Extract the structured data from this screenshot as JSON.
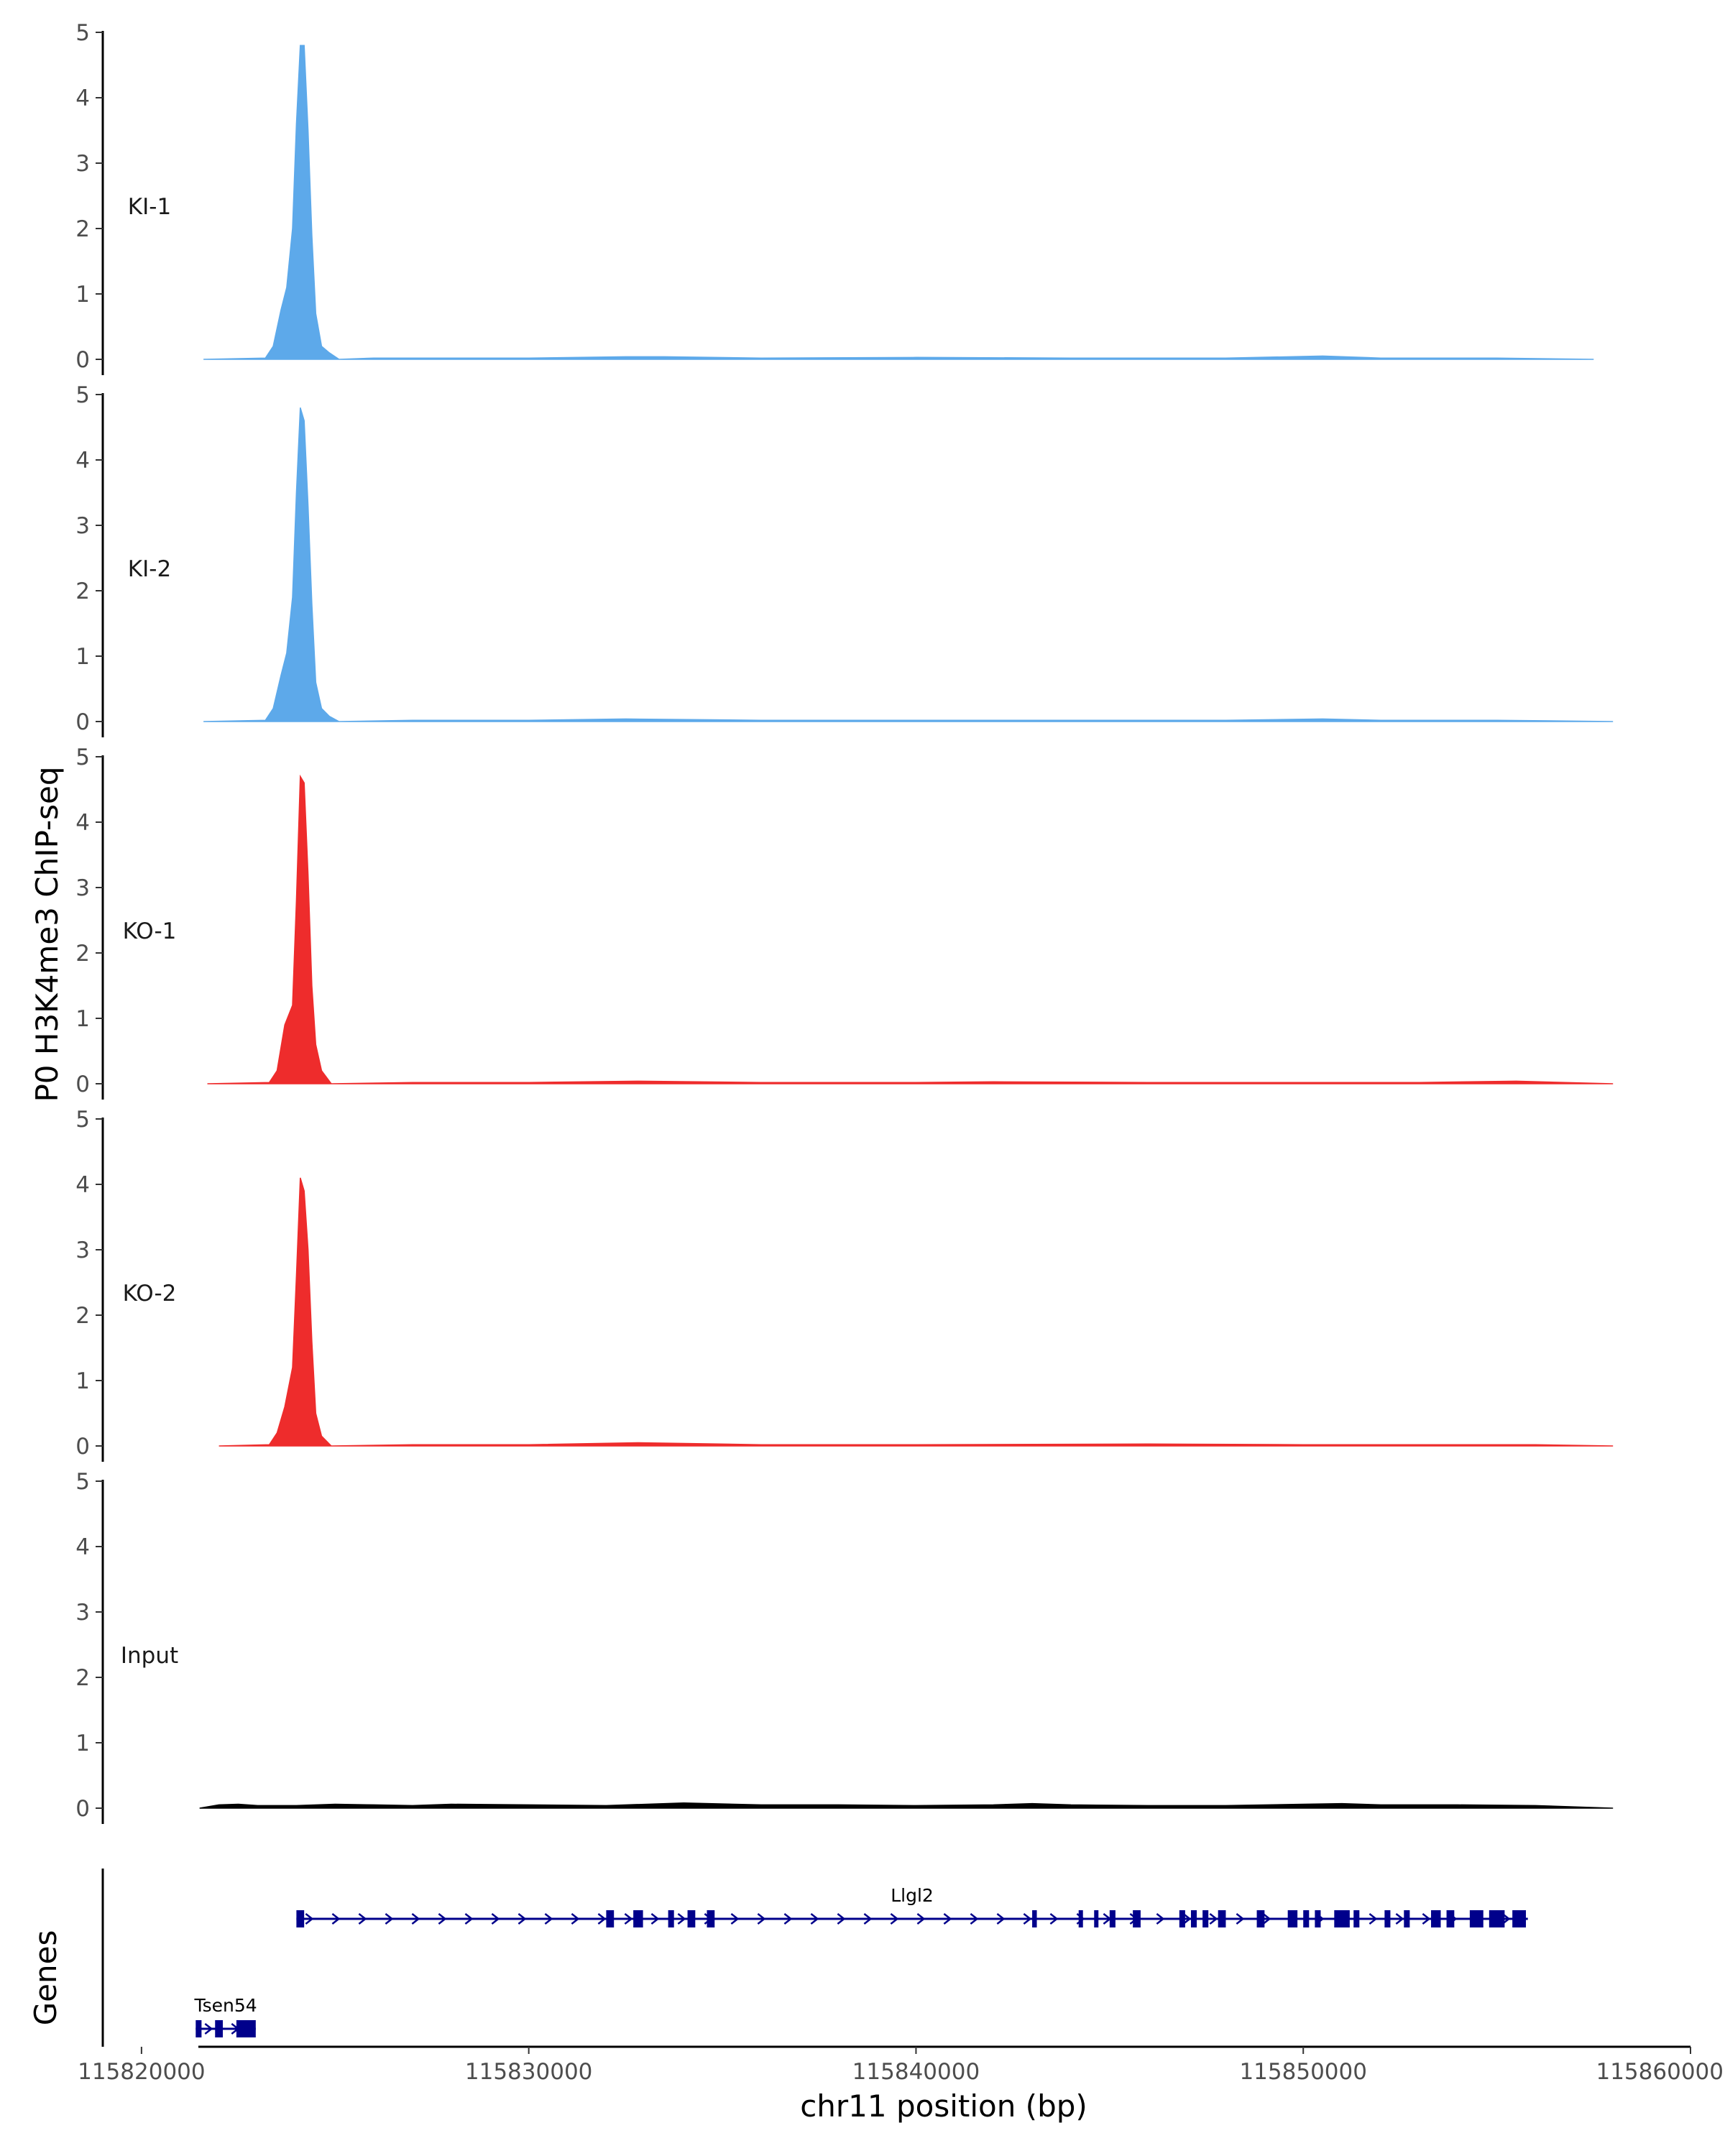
{
  "chart_data": {
    "type": "area",
    "ylabel": "P0 H3K4me3 ChIP-seq",
    "xlabel": "chr11 position (bp)",
    "xlim": [
      115819000,
      115860000
    ],
    "x_ticks": [
      115820000,
      115830000,
      115840000,
      115850000,
      115860000
    ],
    "x_tick_labels": [
      "115820000",
      "115830000",
      "115840000",
      "115850000",
      "115860000"
    ],
    "ylim": [
      0,
      5
    ],
    "y_ticks": [
      0,
      1,
      2,
      3,
      4,
      5
    ],
    "grid": false,
    "tracks": [
      {
        "name": "KI-1",
        "color": "#5DA9EA",
        "x": [
          115821600,
          115823200,
          115823400,
          115823600,
          115823750,
          115823900,
          115824000,
          115824100,
          115824200,
          115824300,
          115824400,
          115824500,
          115824650,
          115824850,
          115825100,
          115826000,
          115828000,
          115830000,
          115832500,
          115833500,
          115836000,
          115840000,
          115844000,
          115848000,
          115850500,
          115852000,
          115855000,
          115857500
        ],
        "values": [
          0.0,
          0.02,
          0.2,
          0.75,
          1.1,
          2.0,
          3.6,
          4.8,
          4.8,
          3.5,
          1.9,
          0.7,
          0.2,
          0.1,
          0.0,
          0.02,
          0.02,
          0.02,
          0.04,
          0.04,
          0.02,
          0.03,
          0.02,
          0.02,
          0.05,
          0.02,
          0.02,
          0.0
        ]
      },
      {
        "name": "KI-2",
        "color": "#5DA9EA",
        "x": [
          115821600,
          115823200,
          115823400,
          115823600,
          115823750,
          115823900,
          115824000,
          115824100,
          115824200,
          115824300,
          115824400,
          115824500,
          115824650,
          115824850,
          115825100,
          115827000,
          115830000,
          115832500,
          115836000,
          115840000,
          115844000,
          115848000,
          115850500,
          115852000,
          115855000,
          115858000
        ],
        "values": [
          0.0,
          0.02,
          0.2,
          0.7,
          1.05,
          1.9,
          3.5,
          4.8,
          4.6,
          3.3,
          1.8,
          0.6,
          0.2,
          0.08,
          0.0,
          0.02,
          0.02,
          0.04,
          0.02,
          0.02,
          0.02,
          0.02,
          0.04,
          0.02,
          0.02,
          0.0
        ]
      },
      {
        "name": "KO-1",
        "color": "#EE2C2C",
        "x": [
          115821700,
          115823300,
          115823500,
          115823700,
          115823900,
          115824000,
          115824100,
          115824200,
          115824300,
          115824400,
          115824500,
          115824650,
          115824900,
          115827000,
          115830000,
          115832800,
          115836000,
          115840000,
          115842000,
          115846000,
          115850000,
          115853000,
          115855500,
          115858000
        ],
        "values": [
          0.0,
          0.02,
          0.2,
          0.9,
          1.2,
          2.8,
          4.7,
          4.6,
          3.2,
          1.5,
          0.6,
          0.2,
          0.0,
          0.02,
          0.02,
          0.04,
          0.02,
          0.02,
          0.03,
          0.02,
          0.02,
          0.02,
          0.04,
          0.0
        ]
      },
      {
        "name": "KO-2",
        "color": "#EE2C2C",
        "x": [
          115822000,
          115823300,
          115823500,
          115823700,
          115823900,
          115824000,
          115824100,
          115824200,
          115824300,
          115824400,
          115824500,
          115824650,
          115824900,
          115827000,
          115830000,
          115832800,
          115836000,
          115840000,
          115846000,
          115850000,
          115853000,
          115856000,
          115858000
        ],
        "values": [
          0.0,
          0.02,
          0.2,
          0.6,
          1.2,
          2.6,
          4.1,
          3.9,
          3.0,
          1.6,
          0.5,
          0.15,
          0.0,
          0.02,
          0.02,
          0.05,
          0.02,
          0.02,
          0.03,
          0.02,
          0.02,
          0.02,
          0.0
        ]
      },
      {
        "name": "Input",
        "color": "#000000",
        "x": [
          115821500,
          115822000,
          115822500,
          115823000,
          115824000,
          115825000,
          115826000,
          115827000,
          115828000,
          115830000,
          115832000,
          115834000,
          115836000,
          115838000,
          115840000,
          115842000,
          115843000,
          115844000,
          115846000,
          115848000,
          115850000,
          115851000,
          115852000,
          115854000,
          115856000,
          115858000
        ],
        "values": [
          0.0,
          0.05,
          0.06,
          0.04,
          0.04,
          0.06,
          0.05,
          0.04,
          0.06,
          0.05,
          0.04,
          0.08,
          0.05,
          0.05,
          0.04,
          0.05,
          0.07,
          0.05,
          0.04,
          0.04,
          0.06,
          0.07,
          0.05,
          0.05,
          0.04,
          0.0
        ]
      }
    ],
    "genes_label": "Genes",
    "genes": [
      {
        "name": "Llgl2",
        "start": 115824000,
        "end": 115855800,
        "strand": "+",
        "exons": [
          [
            115824000,
            115824200
          ],
          [
            115832000,
            115832200
          ],
          [
            115832700,
            115832950
          ],
          [
            115833600,
            115833750
          ],
          [
            115834100,
            115834300
          ],
          [
            115834600,
            115834800
          ],
          [
            115843000,
            115843120
          ],
          [
            115844200,
            115844300
          ],
          [
            115844600,
            115844700
          ],
          [
            115845000,
            115845150
          ],
          [
            115845600,
            115845800
          ],
          [
            115846800,
            115846950
          ],
          [
            115847100,
            115847250
          ],
          [
            115847400,
            115847550
          ],
          [
            115847800,
            115848000
          ],
          [
            115848800,
            115849000
          ],
          [
            115849600,
            115849850
          ],
          [
            115850000,
            115850150
          ],
          [
            115850300,
            115850450
          ],
          [
            115850800,
            115851200
          ],
          [
            115851300,
            115851450
          ],
          [
            115852100,
            115852250
          ],
          [
            115852600,
            115852750
          ],
          [
            115853300,
            115853550
          ],
          [
            115853700,
            115853900
          ],
          [
            115854300,
            115854650
          ],
          [
            115854800,
            115855200
          ],
          [
            115855400,
            115855750
          ]
        ],
        "row": 1
      },
      {
        "name": "Tsen54",
        "start": 115821400,
        "end": 115822950,
        "strand": "+",
        "exons": [
          [
            115821400,
            115821550
          ],
          [
            115821900,
            115822100
          ],
          [
            115822450,
            115822950
          ]
        ],
        "row": 2
      }
    ]
  }
}
